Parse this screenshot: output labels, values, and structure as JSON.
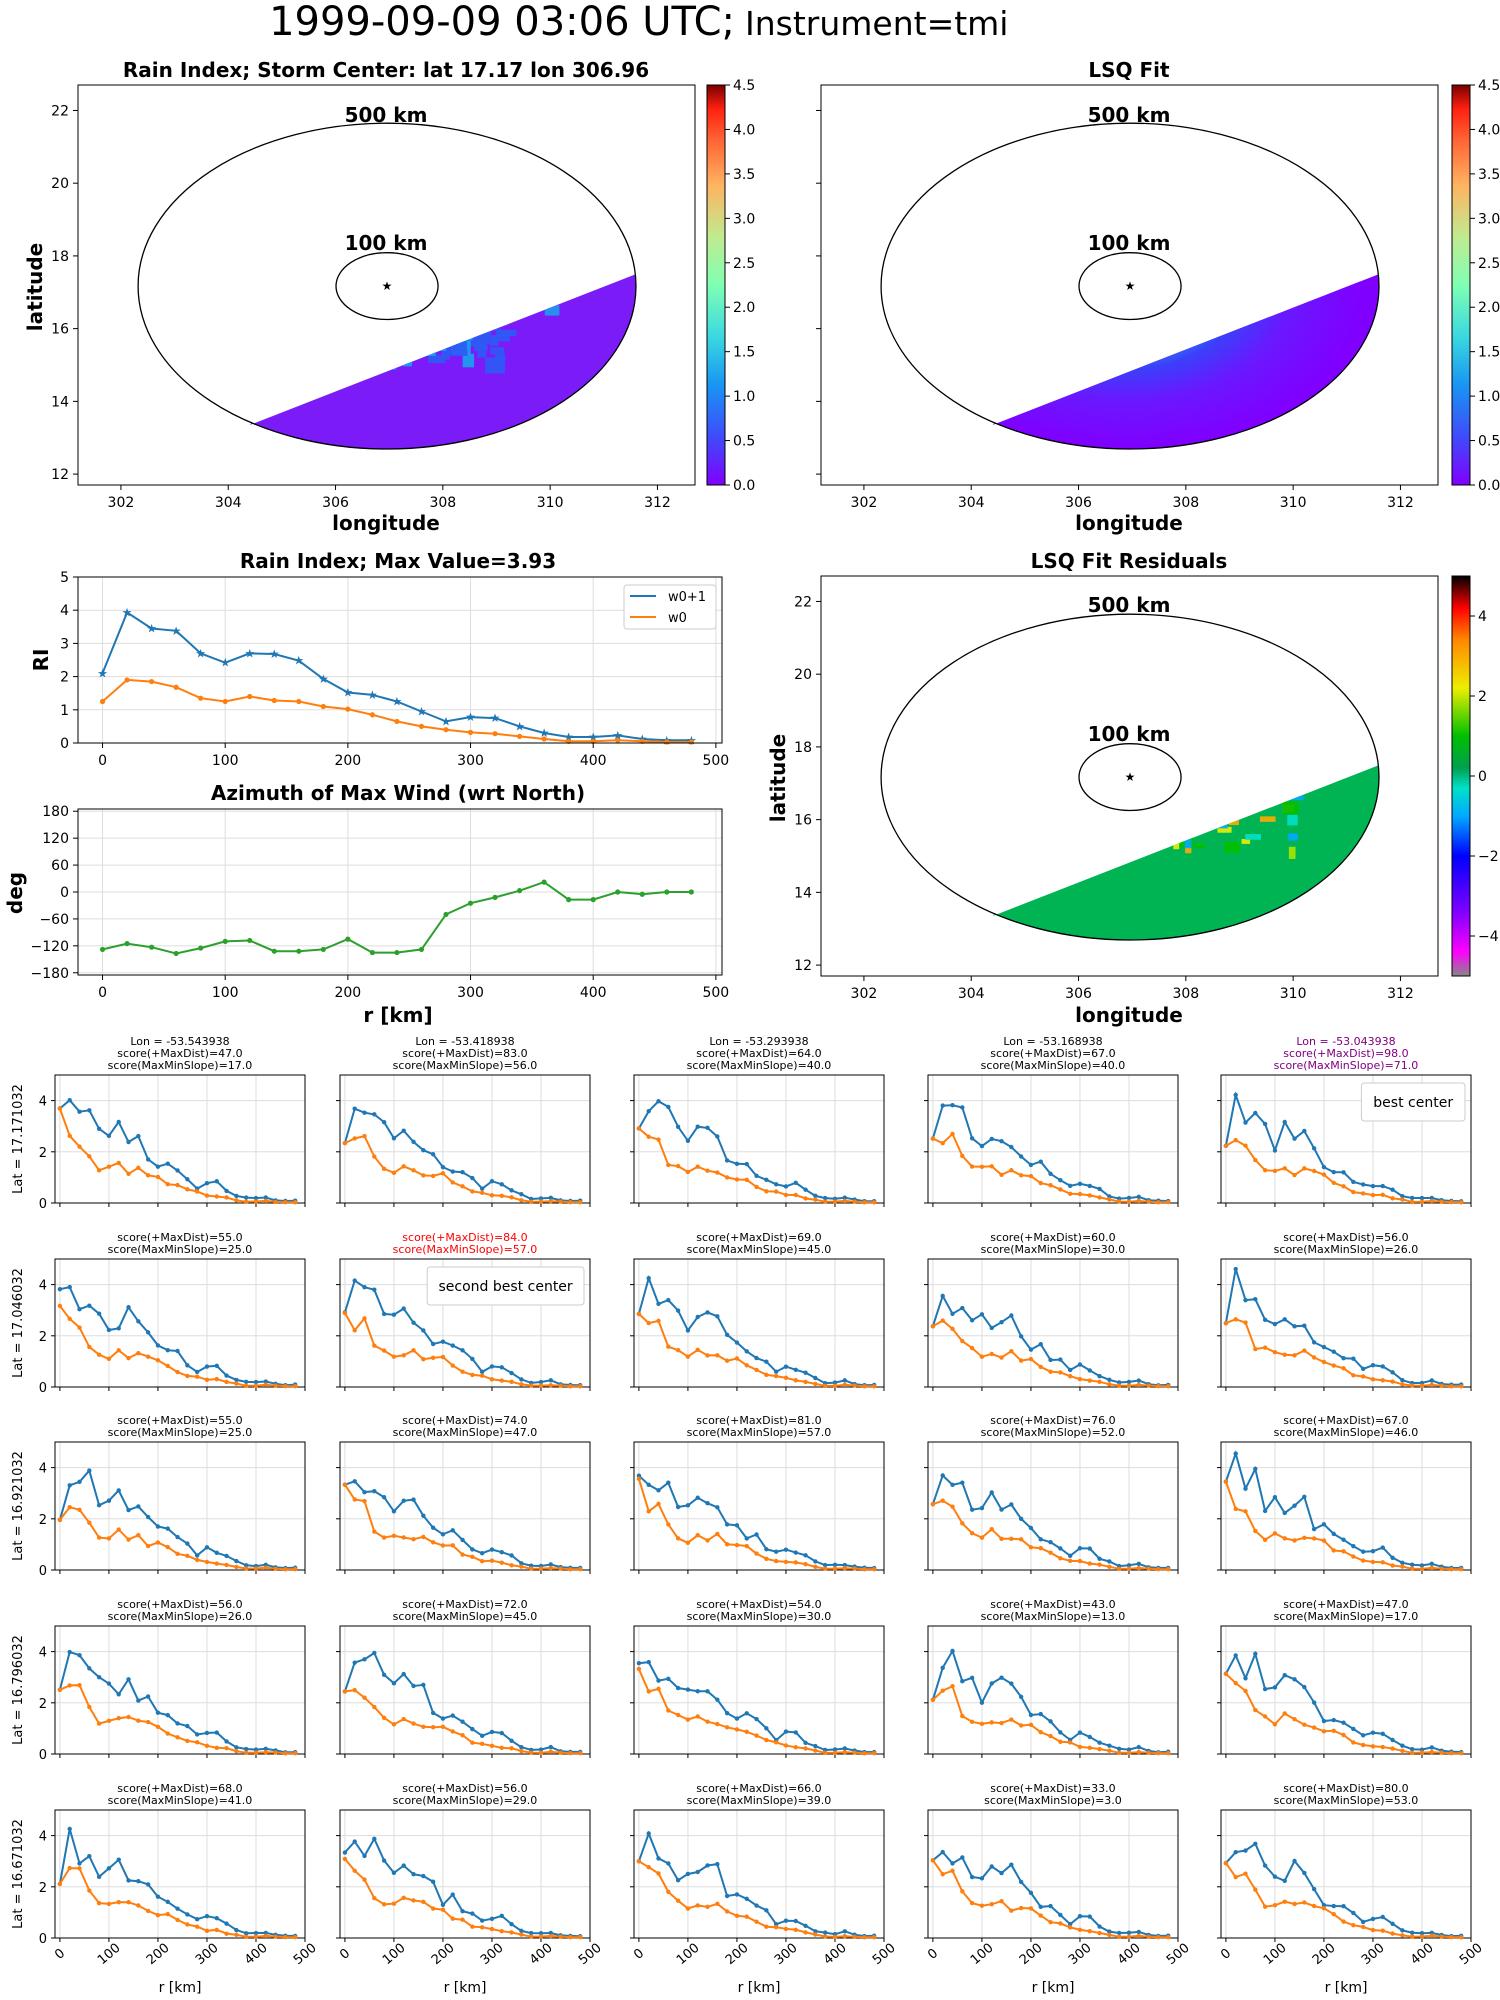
{
  "figure": {
    "title_main": "1999-09-09 03:06 UTC;",
    "title_instrument": "Instrument=tmi"
  },
  "colorbar_ticks": {
    "rain": [
      "0.0",
      "0.5",
      "1.0",
      "1.5",
      "2.0",
      "2.5",
      "3.0",
      "3.5",
      "4.0",
      "4.5"
    ],
    "residual": [
      "−4",
      "−2",
      "0",
      "2",
      "4"
    ]
  },
  "colors": {
    "w0p1": "#1f77b4",
    "w0": "#ff7f0e",
    "azimuth": "#2ca02c",
    "best": "#800080",
    "second": "#ff0000"
  },
  "chart_data": [
    {
      "id": "rain-index-map",
      "type": "heatmap",
      "title": "Rain Index; Storm Center: lat 17.17 lon 306.96",
      "xlabel": "longitude",
      "ylabel": "latitude",
      "xticks": [
        302,
        304,
        306,
        308,
        310,
        312
      ],
      "yticks": [
        12,
        14,
        16,
        18,
        20,
        22
      ],
      "xlim": [
        301.2,
        312.7
      ],
      "ylim": [
        11.7,
        22.7
      ],
      "annotations": [
        "500 km",
        "100 km"
      ],
      "center": {
        "lon": 306.96,
        "lat": 17.17
      },
      "colorbar": {
        "min": 0.0,
        "max": 4.5,
        "colormap": "rainbow"
      }
    },
    {
      "id": "lsq-fit-map",
      "type": "heatmap",
      "title": "LSQ Fit",
      "xlabel": "longitude",
      "xticks": [
        302,
        304,
        306,
        308,
        310,
        312
      ],
      "xlim": [
        301.2,
        312.7
      ],
      "ylim": [
        11.7,
        22.7
      ],
      "annotations": [
        "500 km",
        "100 km"
      ],
      "center": {
        "lon": 306.96,
        "lat": 17.17
      },
      "colorbar": {
        "min": 0.0,
        "max": 4.5,
        "colormap": "rainbow"
      }
    },
    {
      "id": "rain-index-profile",
      "type": "line",
      "title": "Rain Index; Max Value=3.93",
      "ylabel": "RI",
      "xticks": [
        0,
        100,
        200,
        300,
        400,
        500
      ],
      "yticks": [
        0,
        1,
        2,
        3,
        4,
        5
      ],
      "xlim": [
        -20,
        505
      ],
      "ylim": [
        0,
        5
      ],
      "legend": "top-right",
      "x": [
        0,
        20,
        40,
        60,
        80,
        100,
        120,
        140,
        160,
        180,
        200,
        220,
        240,
        260,
        280,
        300,
        320,
        340,
        360,
        380,
        400,
        420,
        440,
        460,
        480
      ],
      "series": [
        {
          "name": "w0+1",
          "values": [
            2.1,
            3.93,
            3.45,
            3.38,
            2.7,
            2.42,
            2.7,
            2.68,
            2.48,
            1.93,
            1.52,
            1.45,
            1.25,
            0.95,
            0.65,
            0.78,
            0.75,
            0.5,
            0.3,
            0.18,
            0.18,
            0.23,
            0.12,
            0.08,
            0.08
          ]
        },
        {
          "name": "w0",
          "values": [
            1.25,
            1.9,
            1.85,
            1.68,
            1.35,
            1.25,
            1.4,
            1.28,
            1.25,
            1.1,
            1.02,
            0.85,
            0.65,
            0.5,
            0.4,
            0.32,
            0.28,
            0.2,
            0.12,
            0.05,
            0.05,
            0.08,
            0.05,
            0.03,
            0.03
          ]
        }
      ]
    },
    {
      "id": "azimuth-profile",
      "type": "line",
      "title": "Azimuth of Max Wind (wrt North)",
      "xlabel": "r [km]",
      "ylabel": "deg",
      "xticks": [
        0,
        100,
        200,
        300,
        400,
        500
      ],
      "yticks": [
        -180,
        -120,
        -60,
        0,
        60,
        120,
        180
      ],
      "xlim": [
        -20,
        505
      ],
      "ylim": [
        -185,
        185
      ],
      "x": [
        0,
        20,
        40,
        60,
        80,
        100,
        120,
        140,
        160,
        180,
        200,
        220,
        240,
        260,
        280,
        300,
        320,
        340,
        360,
        380,
        400,
        420,
        440,
        460,
        480
      ],
      "series": [
        {
          "values": [
            -128,
            -115,
            -123,
            -137,
            -125,
            -110,
            -108,
            -132,
            -132,
            -128,
            -105,
            -135,
            -135,
            -128,
            -50,
            -25,
            -12,
            3,
            22,
            -17,
            -17,
            0,
            -5,
            0,
            0
          ]
        }
      ]
    },
    {
      "id": "lsq-residuals-map",
      "type": "heatmap",
      "title": "LSQ Fit Residuals",
      "xlabel": "longitude",
      "ylabel": "latitude",
      "xticks": [
        302,
        304,
        306,
        308,
        310,
        312
      ],
      "yticks": [
        12,
        14,
        16,
        18,
        20,
        22
      ],
      "xlim": [
        301.2,
        312.7
      ],
      "ylim": [
        11.7,
        22.7
      ],
      "annotations": [
        "500 km",
        "100 km"
      ],
      "center": {
        "lon": 306.96,
        "lat": 17.17
      },
      "colorbar": {
        "min": -5,
        "max": 5,
        "colormap": "nipy_spectral"
      }
    },
    {
      "id": "center-grid",
      "type": "line",
      "xlabel": "r [km]",
      "xticks": [
        0,
        100,
        200,
        300,
        400,
        500
      ],
      "yticks": [
        0,
        2,
        4
      ],
      "xlim": [
        -10,
        500
      ],
      "ylim": [
        0,
        5
      ],
      "x": [
        0,
        20,
        40,
        60,
        80,
        100,
        120,
        140,
        160,
        180,
        200,
        220,
        240,
        260,
        280,
        300,
        320,
        340,
        360,
        380,
        400,
        420,
        440,
        460,
        480
      ],
      "columns": [
        {
          "lon": "Lon = -53.543938"
        },
        {
          "lon": "Lon = -53.418938"
        },
        {
          "lon": "Lon = -53.293938"
        },
        {
          "lon": "Lon = -53.168938"
        },
        {
          "lon": "Lon = -53.043938"
        }
      ],
      "rows": [
        {
          "lat": "Lat = 17.171032",
          "cells": [
            {
              "maxdist": 47.0,
              "maxmin": 17.0
            },
            {
              "maxdist": 83.0,
              "maxmin": 56.0
            },
            {
              "maxdist": 64.0,
              "maxmin": 40.0
            },
            {
              "maxdist": 67.0,
              "maxmin": 40.0
            },
            {
              "maxdist": 98.0,
              "maxmin": 71.0,
              "note": "best center",
              "highlight": "best"
            }
          ]
        },
        {
          "lat": "Lat = 17.046032",
          "cells": [
            {
              "maxdist": 55.0,
              "maxmin": 25.0
            },
            {
              "maxdist": 84.0,
              "maxmin": 57.0,
              "note": "second best center",
              "highlight": "second"
            },
            {
              "maxdist": 69.0,
              "maxmin": 45.0
            },
            {
              "maxdist": 60.0,
              "maxmin": 30.0
            },
            {
              "maxdist": 56.0,
              "maxmin": 26.0
            }
          ]
        },
        {
          "lat": "Lat = 16.921032",
          "cells": [
            {
              "maxdist": 55.0,
              "maxmin": 25.0
            },
            {
              "maxdist": 74.0,
              "maxmin": 47.0
            },
            {
              "maxdist": 81.0,
              "maxmin": 57.0
            },
            {
              "maxdist": 76.0,
              "maxmin": 52.0
            },
            {
              "maxdist": 67.0,
              "maxmin": 46.0
            }
          ]
        },
        {
          "lat": "Lat = 16.796032",
          "cells": [
            {
              "maxdist": 56.0,
              "maxmin": 26.0
            },
            {
              "maxdist": 72.0,
              "maxmin": 45.0
            },
            {
              "maxdist": 54.0,
              "maxmin": 30.0
            },
            {
              "maxdist": 43.0,
              "maxmin": 13.0
            },
            {
              "maxdist": 47.0,
              "maxmin": 17.0
            }
          ]
        },
        {
          "lat": "Lat = 16.671032",
          "cells": [
            {
              "maxdist": 68.0,
              "maxmin": 41.0
            },
            {
              "maxdist": 56.0,
              "maxmin": 29.0
            },
            {
              "maxdist": 66.0,
              "maxmin": 39.0
            },
            {
              "maxdist": 33.0,
              "maxmin": 3.0
            },
            {
              "maxdist": 80.0,
              "maxmin": 53.0
            }
          ]
        }
      ]
    }
  ]
}
